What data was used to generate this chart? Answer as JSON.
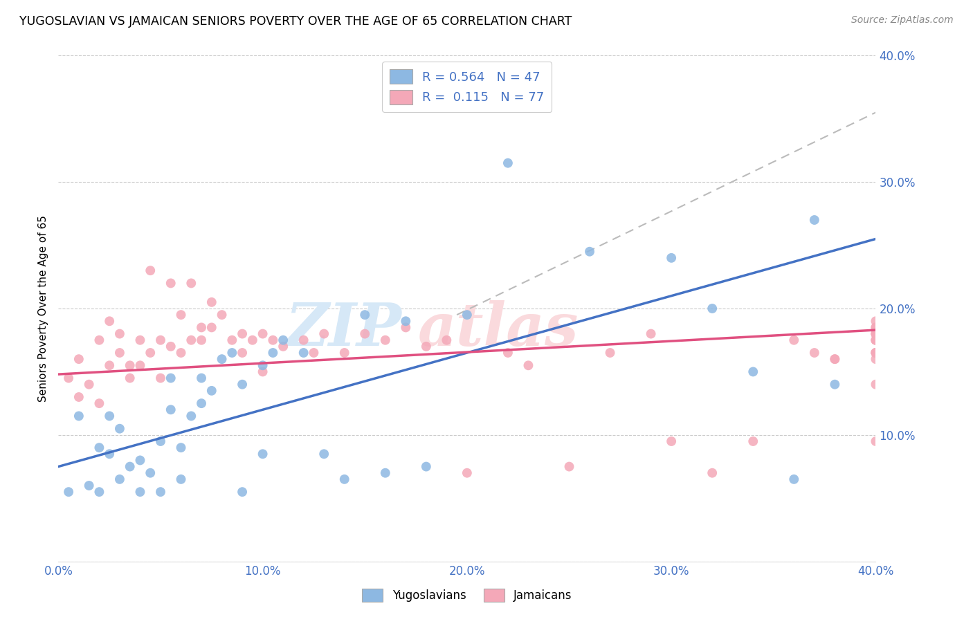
{
  "title": "YUGOSLAVIAN VS JAMAICAN SENIORS POVERTY OVER THE AGE OF 65 CORRELATION CHART",
  "source": "Source: ZipAtlas.com",
  "ylabel": "Seniors Poverty Over the Age of 65",
  "xlim": [
    0.0,
    0.4
  ],
  "ylim": [
    0.0,
    0.4
  ],
  "xticks": [
    0.0,
    0.1,
    0.2,
    0.3,
    0.4
  ],
  "yticks": [
    0.0,
    0.1,
    0.2,
    0.3,
    0.4
  ],
  "blue_color": "#8DB8E2",
  "pink_color": "#F4A8B8",
  "blue_line_color": "#4472C4",
  "pink_line_color": "#E05080",
  "dashed_line_color": "#BBBBBB",
  "watermark_zip_color": "#D6E8F7",
  "watermark_atlas_color": "#FADADD",
  "blue_line_x": [
    0.0,
    0.4
  ],
  "blue_line_y": [
    0.075,
    0.255
  ],
  "pink_line_x": [
    0.0,
    0.4
  ],
  "pink_line_y": [
    0.148,
    0.183
  ],
  "dash_line_x": [
    0.195,
    0.4
  ],
  "dash_line_y": [
    0.195,
    0.355
  ],
  "yug_x": [
    0.005,
    0.01,
    0.015,
    0.02,
    0.02,
    0.025,
    0.025,
    0.03,
    0.03,
    0.035,
    0.04,
    0.04,
    0.045,
    0.05,
    0.05,
    0.055,
    0.055,
    0.06,
    0.06,
    0.065,
    0.07,
    0.07,
    0.075,
    0.08,
    0.085,
    0.09,
    0.09,
    0.1,
    0.1,
    0.105,
    0.11,
    0.12,
    0.13,
    0.14,
    0.15,
    0.16,
    0.17,
    0.18,
    0.2,
    0.22,
    0.26,
    0.3,
    0.32,
    0.34,
    0.36,
    0.37,
    0.38
  ],
  "yug_y": [
    0.055,
    0.115,
    0.06,
    0.055,
    0.09,
    0.085,
    0.115,
    0.065,
    0.105,
    0.075,
    0.055,
    0.08,
    0.07,
    0.055,
    0.095,
    0.12,
    0.145,
    0.065,
    0.09,
    0.115,
    0.125,
    0.145,
    0.135,
    0.16,
    0.165,
    0.055,
    0.14,
    0.085,
    0.155,
    0.165,
    0.175,
    0.165,
    0.085,
    0.065,
    0.195,
    0.07,
    0.19,
    0.075,
    0.195,
    0.315,
    0.245,
    0.24,
    0.2,
    0.15,
    0.065,
    0.27,
    0.14
  ],
  "jam_x": [
    0.005,
    0.01,
    0.01,
    0.015,
    0.02,
    0.02,
    0.025,
    0.025,
    0.03,
    0.03,
    0.035,
    0.035,
    0.04,
    0.04,
    0.045,
    0.045,
    0.05,
    0.05,
    0.055,
    0.055,
    0.06,
    0.06,
    0.065,
    0.065,
    0.07,
    0.07,
    0.075,
    0.075,
    0.08,
    0.085,
    0.09,
    0.09,
    0.095,
    0.1,
    0.1,
    0.105,
    0.11,
    0.12,
    0.125,
    0.13,
    0.14,
    0.15,
    0.16,
    0.17,
    0.18,
    0.19,
    0.2,
    0.22,
    0.23,
    0.25,
    0.27,
    0.29,
    0.3,
    0.32,
    0.34,
    0.36,
    0.37,
    0.38,
    0.38,
    0.4,
    0.4,
    0.4,
    0.4,
    0.4,
    0.4,
    0.4,
    0.4,
    0.4,
    0.4,
    0.4,
    0.4,
    0.4,
    0.4,
    0.4,
    0.4,
    0.4,
    0.4
  ],
  "jam_y": [
    0.145,
    0.13,
    0.16,
    0.14,
    0.175,
    0.125,
    0.155,
    0.19,
    0.165,
    0.18,
    0.155,
    0.145,
    0.175,
    0.155,
    0.23,
    0.165,
    0.175,
    0.145,
    0.17,
    0.22,
    0.165,
    0.195,
    0.175,
    0.22,
    0.175,
    0.185,
    0.205,
    0.185,
    0.195,
    0.175,
    0.18,
    0.165,
    0.175,
    0.15,
    0.18,
    0.175,
    0.17,
    0.175,
    0.165,
    0.18,
    0.165,
    0.18,
    0.175,
    0.185,
    0.17,
    0.175,
    0.07,
    0.165,
    0.155,
    0.075,
    0.165,
    0.18,
    0.095,
    0.07,
    0.095,
    0.175,
    0.165,
    0.16,
    0.16,
    0.095,
    0.165,
    0.18,
    0.175,
    0.185,
    0.165,
    0.175,
    0.18,
    0.19,
    0.165,
    0.175,
    0.165,
    0.18,
    0.185,
    0.14,
    0.165,
    0.16,
    0.18
  ]
}
